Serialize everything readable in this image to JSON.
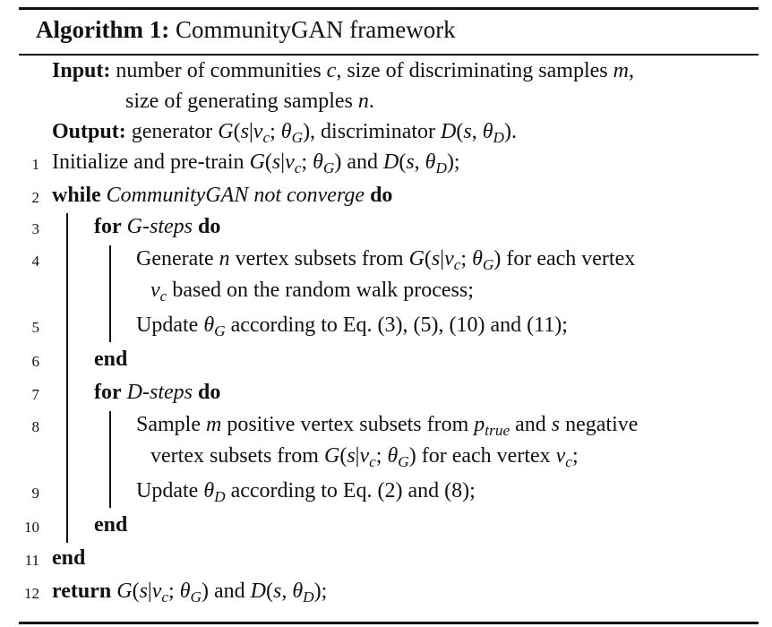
{
  "title": {
    "label": "Algorithm 1:",
    "text": "CommunityGAN framework"
  },
  "input": {
    "label": "Input:",
    "line1": "number of communities c, size of discriminating samples m,",
    "line2": "size of generating samples n."
  },
  "output": {
    "label": "Output:",
    "text": "generator G(s|v_c; θ_G), discriminator D(s, θ_D)."
  },
  "steps": [
    {
      "num": "1",
      "text": "Initialize and pre-train G(s|v_c; θ_G) and D(s, θ_D);"
    },
    {
      "num": "2",
      "kw1": "while",
      "cond": "CommunityGAN not converge",
      "kw2": "do"
    },
    {
      "num": "3",
      "kw1": "for",
      "cond": "G-steps",
      "kw2": "do"
    },
    {
      "num": "4",
      "line1": "Generate n vertex subsets from G(s|v_c; θ_G) for each vertex",
      "line2": "v_c based on the random walk process;"
    },
    {
      "num": "5",
      "text": "Update θ_G according to Eq. (3), (5), (10) and (11);"
    },
    {
      "num": "6",
      "kw1": "end"
    },
    {
      "num": "7",
      "kw1": "for",
      "cond": "D-steps",
      "kw2": "do"
    },
    {
      "num": "8",
      "line1": "Sample m positive vertex subsets from p_true and s negative",
      "line2": "vertex subsets from G(s|v_c; θ_G) for each vertex v_c;"
    },
    {
      "num": "9",
      "text": "Update θ_D according to Eq. (2) and (8);"
    },
    {
      "num": "10",
      "kw1": "end"
    },
    {
      "num": "11",
      "kw1": "end"
    },
    {
      "num": "12",
      "kw1": "return",
      "text": "G(s|v_c; θ_G) and D(s, θ_D);"
    }
  ]
}
